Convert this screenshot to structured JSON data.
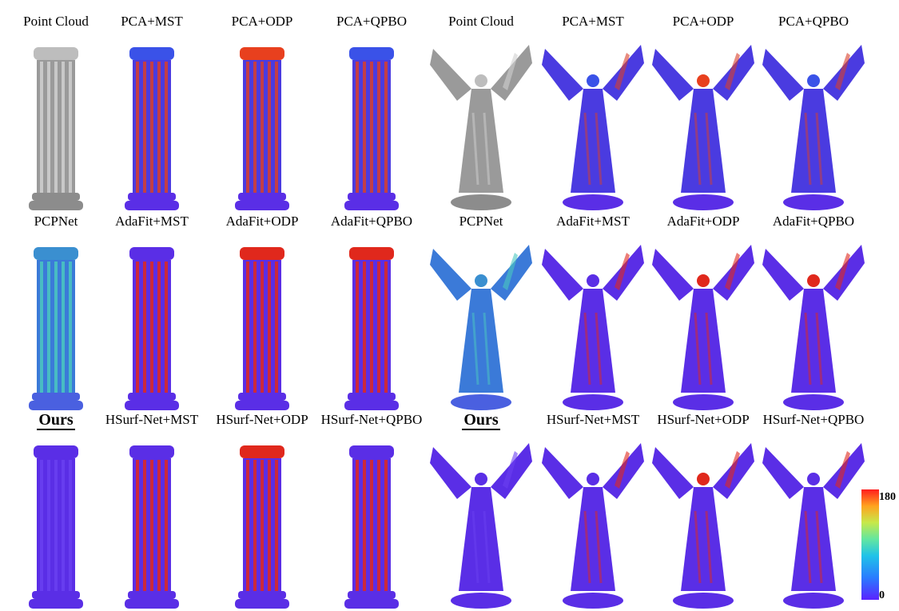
{
  "figure": {
    "panels": [
      {
        "label": "Point Cloud",
        "bold": false,
        "style": "gray"
      },
      {
        "label": "PCA+MST",
        "bold": false,
        "style": "err-med"
      },
      {
        "label": "PCA+ODP",
        "bold": false,
        "style": "err-med-top"
      },
      {
        "label": "PCA+QPBO",
        "bold": false,
        "style": "err-med"
      },
      {
        "label": "PCPNet",
        "bold": false,
        "style": "err-cyan"
      },
      {
        "label": "AdaFit+MST",
        "bold": false,
        "style": "err-high"
      },
      {
        "label": "AdaFit+ODP",
        "bold": false,
        "style": "err-high-top"
      },
      {
        "label": "AdaFit+QPBO",
        "bold": false,
        "style": "err-high-top"
      },
      {
        "label": "Ours",
        "bold": true,
        "style": "err-low"
      },
      {
        "label": "HSurf-Net+MST",
        "bold": false,
        "style": "err-high"
      },
      {
        "label": "HSurf-Net+ODP",
        "bold": false,
        "style": "err-high-top"
      },
      {
        "label": "HSurf-Net+QPBO",
        "bold": false,
        "style": "err-high"
      }
    ],
    "colorbar": {
      "max_label": "180",
      "min_label": "0"
    }
  }
}
